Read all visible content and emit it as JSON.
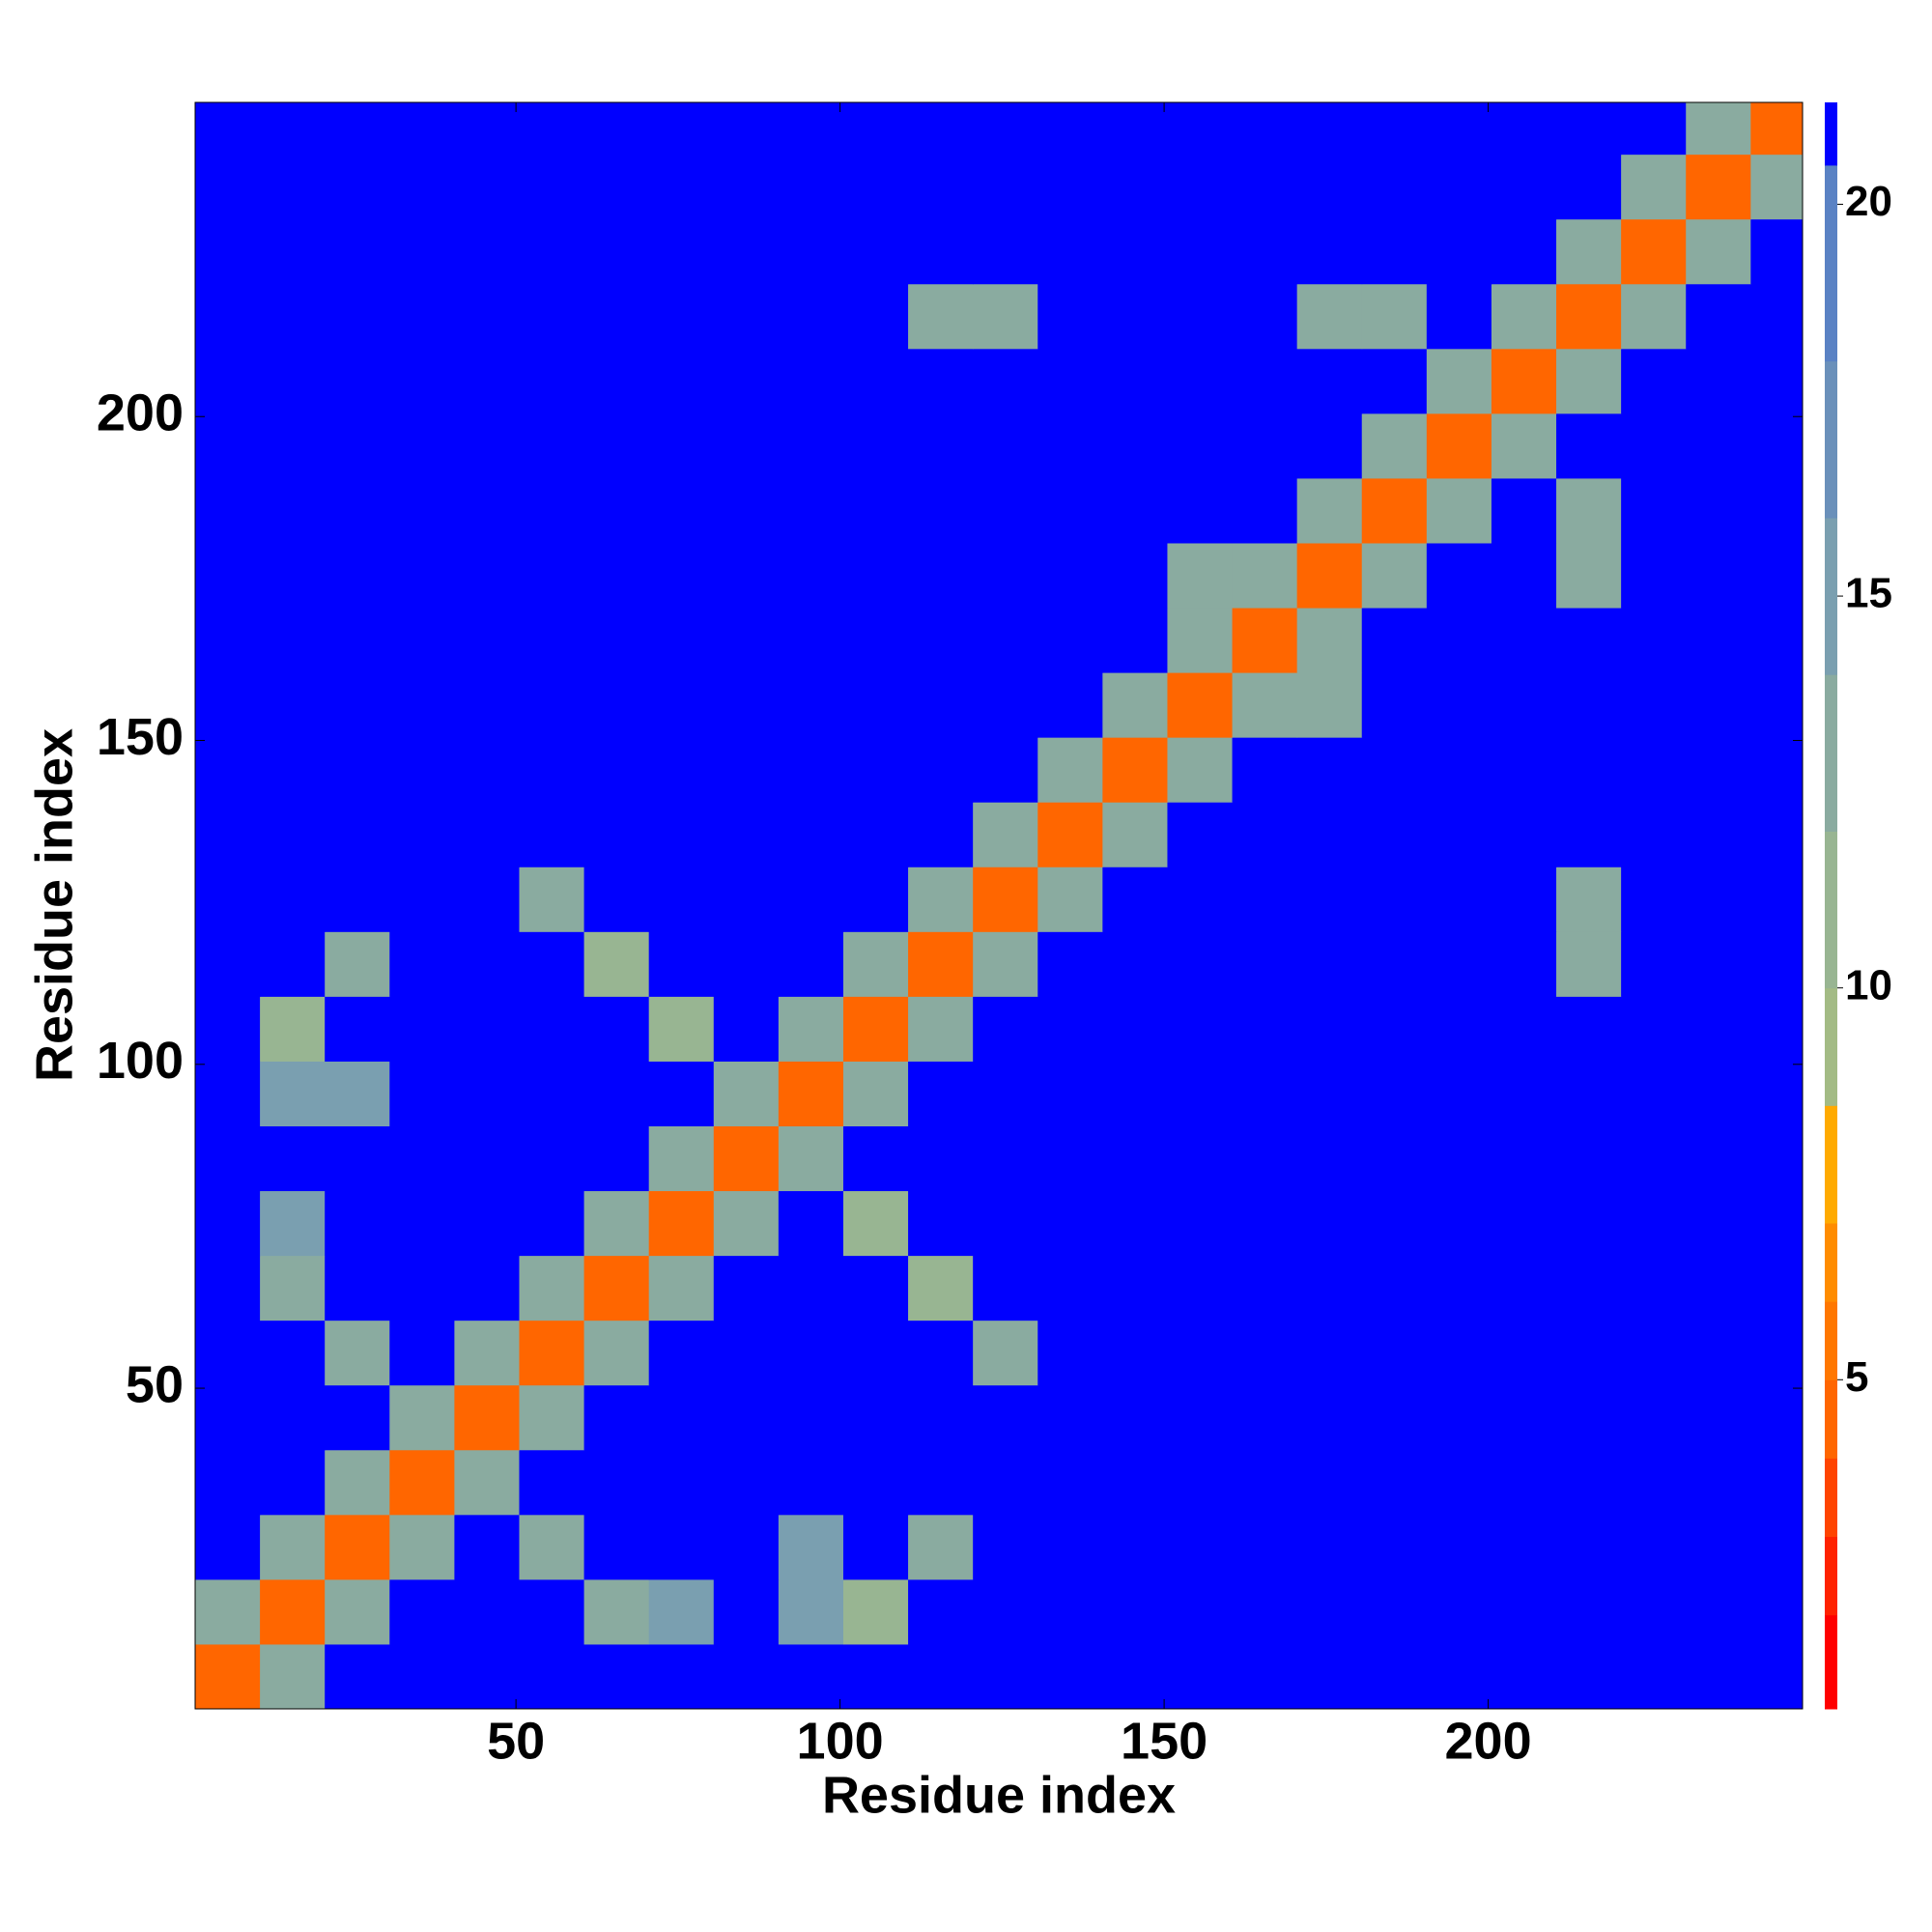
{
  "chart_data": {
    "type": "heatmap",
    "x_label": "Residue index",
    "y_label": "Residue index",
    "xlim": [
      0.5,
      248.5
    ],
    "ylim": [
      0.5,
      248.5
    ],
    "xticks": [
      50,
      100,
      150,
      200
    ],
    "yticks": [
      50,
      100,
      150,
      200
    ],
    "xbins": [
      0.5,
      10.5,
      20.5,
      30.5,
      40.5,
      50.5,
      60.5,
      70.5,
      80.5,
      90.5,
      100.5,
      110.5,
      120.5,
      130.5,
      140.5,
      150.5,
      160.5,
      170.5,
      180.5,
      190.5,
      200.5,
      210.5,
      220.5,
      230.5,
      240.5,
      248.5
    ],
    "ybins": [
      0.5,
      10.5,
      20.5,
      30.5,
      40.5,
      50.5,
      60.5,
      70.5,
      80.5,
      90.5,
      100.5,
      110.5,
      120.5,
      130.5,
      140.5,
      150.5,
      160.5,
      170.5,
      180.5,
      190.5,
      200.5,
      210.5,
      220.5,
      230.5,
      240.5,
      248.5
    ],
    "zlim": [
      0.8,
      21.3
    ],
    "zticks": [
      5,
      10,
      15,
      20
    ],
    "colorscale": [
      [
        2,
        "#ff0000"
      ],
      [
        3,
        "#ff2200"
      ],
      [
        4,
        "#ff4400"
      ],
      [
        5,
        "#ff6600"
      ],
      [
        6,
        "#ff7700"
      ],
      [
        7,
        "#ff8c00"
      ],
      [
        8.5,
        "#ffaa00"
      ],
      [
        10,
        "#a3bb85"
      ],
      [
        12,
        "#98b592"
      ],
      [
        14,
        "#8aaba0"
      ],
      [
        16,
        "#7a9fb0"
      ],
      [
        18,
        "#6a90ba"
      ],
      [
        20.5,
        "#5a82c4"
      ],
      [
        21.3,
        "#0000ff"
      ]
    ],
    "z": [
      [
        5,
        14,
        22,
        22,
        22,
        22,
        22,
        22,
        22,
        22,
        22,
        22,
        22,
        22,
        22,
        22,
        22,
        22,
        22,
        22,
        22,
        22,
        22,
        22,
        22
      ],
      [
        14,
        5,
        14,
        22,
        22,
        22,
        14,
        15,
        22,
        15,
        12,
        22,
        22,
        22,
        22,
        22,
        22,
        22,
        22,
        22,
        22,
        22,
        22,
        22,
        22
      ],
      [
        22,
        14,
        5,
        14,
        22,
        13,
        22,
        22,
        22,
        15,
        22,
        14,
        22,
        22,
        22,
        22,
        22,
        22,
        22,
        22,
        22,
        22,
        22,
        22,
        22
      ],
      [
        22,
        22,
        14,
        5,
        14,
        22,
        22,
        22,
        22,
        22,
        22,
        22,
        22,
        22,
        22,
        22,
        22,
        22,
        22,
        22,
        22,
        22,
        22,
        22,
        22
      ],
      [
        22,
        22,
        22,
        14,
        5,
        14,
        22,
        22,
        22,
        22,
        22,
        22,
        22,
        22,
        22,
        22,
        22,
        22,
        22,
        22,
        22,
        22,
        22,
        22,
        22
      ],
      [
        22,
        22,
        13,
        22,
        14,
        5,
        14,
        22,
        22,
        22,
        22,
        22,
        14,
        22,
        22,
        22,
        22,
        22,
        22,
        22,
        22,
        22,
        22,
        22,
        22
      ],
      [
        22,
        14,
        22,
        22,
        22,
        14,
        5,
        14,
        22,
        22,
        22,
        11,
        22,
        22,
        22,
        22,
        22,
        22,
        22,
        22,
        22,
        22,
        22,
        22,
        22
      ],
      [
        22,
        15,
        22,
        22,
        22,
        22,
        14,
        5,
        14,
        22,
        11,
        22,
        22,
        22,
        22,
        22,
        22,
        22,
        22,
        22,
        22,
        22,
        22,
        22,
        22
      ],
      [
        22,
        22,
        22,
        22,
        22,
        22,
        22,
        14,
        5,
        14,
        22,
        22,
        22,
        22,
        22,
        22,
        22,
        22,
        22,
        22,
        22,
        22,
        22,
        22,
        22
      ],
      [
        22,
        15,
        15,
        22,
        22,
        22,
        22,
        22,
        14,
        5,
        14,
        22,
        22,
        22,
        22,
        22,
        22,
        22,
        22,
        22,
        22,
        22,
        22,
        22,
        22
      ],
      [
        22,
        12,
        22,
        22,
        22,
        22,
        22,
        11,
        22,
        14,
        5,
        14,
        22,
        22,
        22,
        22,
        22,
        22,
        22,
        22,
        22,
        22,
        22,
        22,
        22
      ],
      [
        22,
        22,
        14,
        22,
        22,
        22,
        11,
        22,
        22,
        22,
        14,
        5,
        14,
        22,
        22,
        22,
        22,
        22,
        22,
        22,
        22,
        13,
        22,
        22,
        22
      ],
      [
        22,
        22,
        22,
        22,
        22,
        14,
        22,
        22,
        22,
        22,
        22,
        14,
        5,
        14,
        22,
        22,
        22,
        22,
        22,
        22,
        22,
        14,
        22,
        22,
        22
      ],
      [
        22,
        22,
        22,
        22,
        22,
        22,
        22,
        22,
        22,
        22,
        22,
        22,
        14,
        5,
        14,
        22,
        22,
        22,
        22,
        22,
        22,
        22,
        22,
        22,
        22
      ],
      [
        22,
        22,
        22,
        22,
        22,
        22,
        22,
        22,
        22,
        22,
        22,
        22,
        22,
        14,
        5,
        14,
        22,
        22,
        22,
        22,
        22,
        22,
        22,
        22,
        22
      ],
      [
        22,
        22,
        22,
        22,
        22,
        22,
        22,
        22,
        22,
        22,
        22,
        22,
        22,
        22,
        14,
        5,
        14,
        14,
        22,
        22,
        22,
        22,
        22,
        22,
        22
      ],
      [
        22,
        22,
        22,
        22,
        22,
        22,
        22,
        22,
        22,
        22,
        22,
        22,
        22,
        22,
        22,
        14,
        5,
        14,
        22,
        22,
        22,
        22,
        22,
        22,
        22
      ],
      [
        22,
        22,
        22,
        22,
        22,
        22,
        22,
        22,
        22,
        22,
        22,
        22,
        22,
        22,
        22,
        14,
        14,
        5,
        14,
        22,
        22,
        13,
        22,
        22,
        22
      ],
      [
        22,
        22,
        22,
        22,
        22,
        22,
        22,
        22,
        22,
        22,
        22,
        22,
        22,
        22,
        22,
        22,
        22,
        14,
        5,
        14,
        22,
        13,
        22,
        22,
        22
      ],
      [
        22,
        22,
        22,
        22,
        22,
        22,
        22,
        22,
        22,
        22,
        22,
        22,
        22,
        22,
        22,
        22,
        22,
        22,
        14,
        5,
        14,
        22,
        22,
        22,
        22
      ],
      [
        22,
        22,
        22,
        22,
        22,
        22,
        22,
        22,
        22,
        22,
        22,
        22,
        22,
        22,
        22,
        22,
        22,
        22,
        22,
        14,
        5,
        14,
        22,
        22,
        22
      ],
      [
        22,
        22,
        22,
        22,
        22,
        22,
        22,
        22,
        22,
        22,
        22,
        13,
        14,
        22,
        22,
        22,
        22,
        13,
        13,
        22,
        14,
        5,
        14,
        22,
        22
      ],
      [
        22,
        22,
        22,
        22,
        22,
        22,
        22,
        22,
        22,
        22,
        22,
        22,
        22,
        22,
        22,
        22,
        22,
        22,
        22,
        22,
        22,
        14,
        5,
        14,
        22
      ],
      [
        22,
        22,
        22,
        22,
        22,
        22,
        22,
        22,
        22,
        22,
        22,
        22,
        22,
        22,
        22,
        22,
        22,
        22,
        22,
        22,
        22,
        22,
        14,
        5,
        14
      ],
      [
        22,
        22,
        22,
        22,
        22,
        22,
        22,
        22,
        22,
        22,
        22,
        22,
        22,
        22,
        22,
        22,
        22,
        22,
        22,
        22,
        22,
        22,
        22,
        14,
        5
      ]
    ]
  }
}
